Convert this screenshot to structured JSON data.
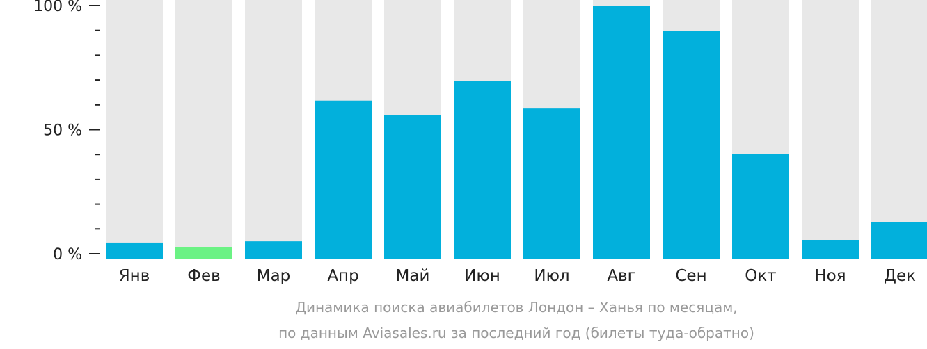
{
  "chart_data": {
    "type": "bar",
    "categories": [
      "Янв",
      "Фев",
      "Мар",
      "Апр",
      "Май",
      "Июн",
      "Июл",
      "Авг",
      "Сен",
      "Окт",
      "Ноя",
      "Дек"
    ],
    "values": [
      4.5,
      2.8,
      5.0,
      61.7,
      56.0,
      69.5,
      58.5,
      100,
      89.8,
      40.1,
      5.6,
      12.8
    ],
    "value_unit": "%",
    "highlight_category": "Фев",
    "ylim": [
      0,
      100
    ],
    "yticks": [
      0,
      50,
      100
    ],
    "ytick_labels": [
      "0 %",
      "50 %",
      "100 %"
    ],
    "y_minor_step": 10,
    "background_bars": true,
    "grid": false,
    "legend": "none",
    "colors": {
      "bar": "#02b0dc",
      "highlight": "#6bf284",
      "track": "#e8e8e8",
      "axis_text": "#222222",
      "caption_text": "#999999"
    }
  },
  "caption": {
    "line1": "Динамика поиска авиабилетов Лондон – Ханья по месяцам,",
    "line2": "по данным Aviasales.ru за последний год (билеты туда-обратно)"
  }
}
